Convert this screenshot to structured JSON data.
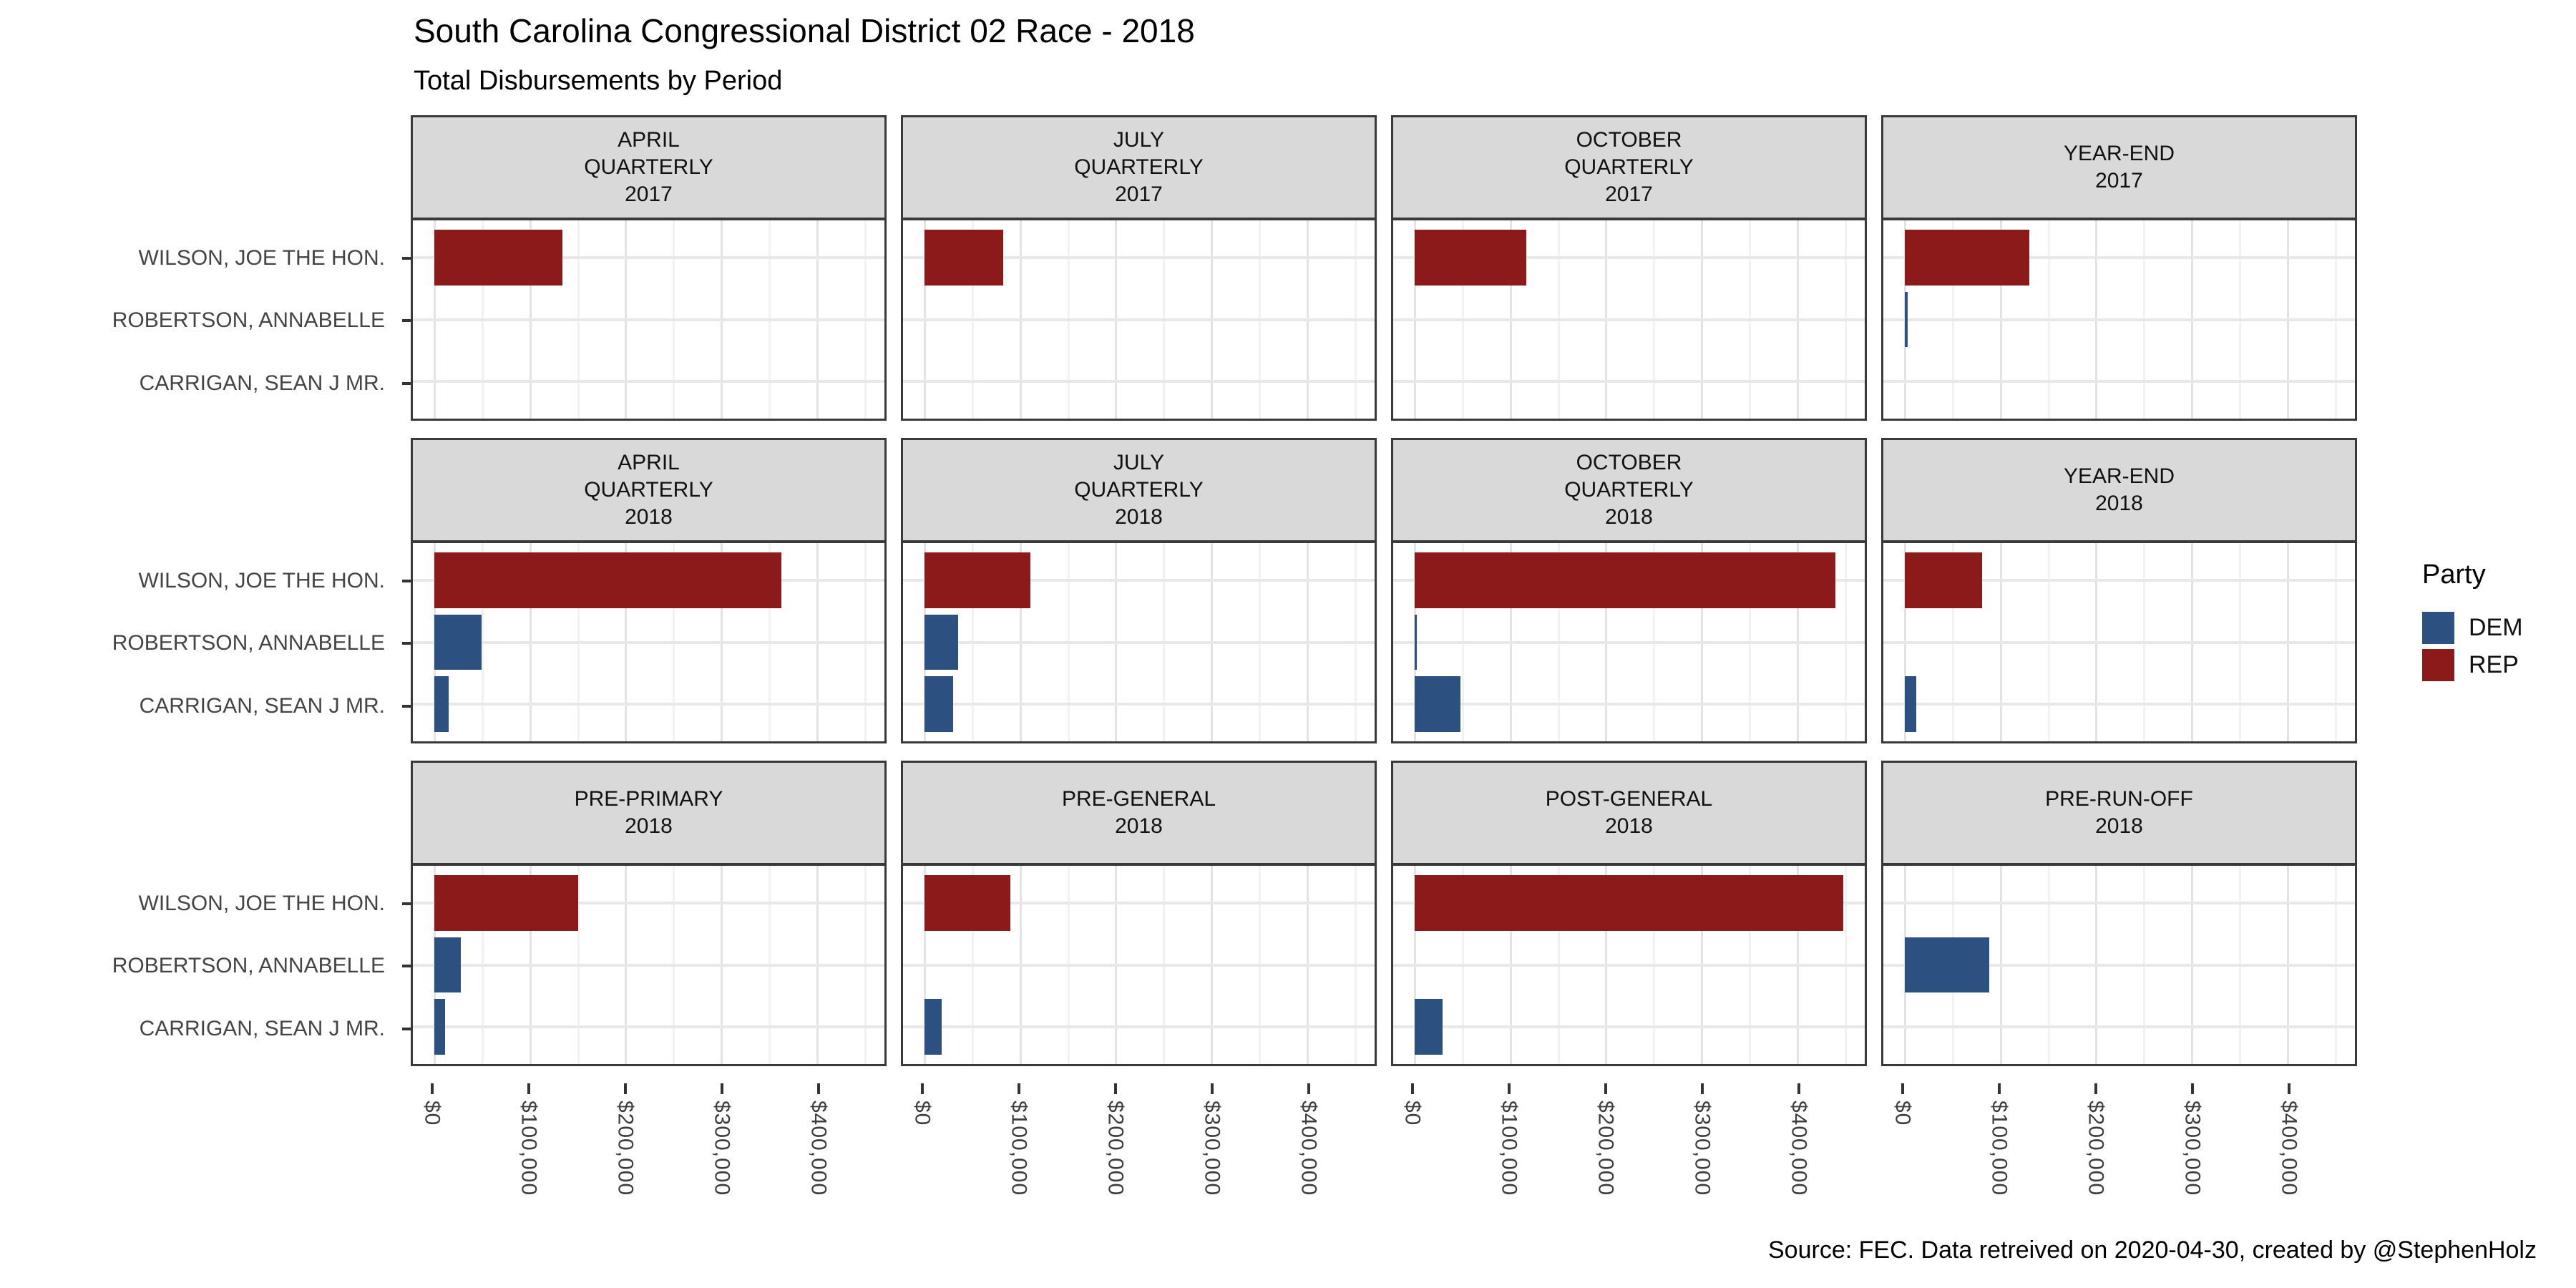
{
  "header": {
    "title": "South Carolina Congressional District 02 Race - 2018",
    "subtitle": "Total Disbursements by Period"
  },
  "caption": "Source: FEC. Data retreived on 2020-04-30, created by @StephenHolz",
  "legend": {
    "title": "Party",
    "items": [
      {
        "label": "DEM",
        "color": "#2C5080"
      },
      {
        "label": "REP",
        "color": "#8C1A1A"
      }
    ]
  },
  "colors": {
    "dem": "#2C5080",
    "rep": "#8C1A1A",
    "strip_bg": "#D9D9D9",
    "panel_border": "#3A3A3A",
    "grid_major": "#E3E3E3",
    "grid_minor": "#F2F2F2",
    "axis_text": "#444444"
  },
  "chart_data": {
    "type": "bar",
    "orientation": "horizontal",
    "title": "South Carolina Congressional District 02 Race - 2018",
    "subtitle": "Total Disbursements by Period",
    "xlabel": "",
    "ylabel": "",
    "grid": true,
    "legend_position": "right",
    "categories": [
      "WILSON, JOE THE HON.",
      "ROBERTSON, ANNABELLE",
      "CARRIGAN, SEAN J MR."
    ],
    "category_parties": [
      "REP",
      "DEM",
      "DEM"
    ],
    "x_axis": {
      "tick_labels": [
        "$0",
        "$100,000",
        "$200,000",
        "$300,000",
        "$400,000"
      ],
      "tick_values": [
        0,
        100000,
        200000,
        300000,
        400000
      ],
      "minor_tick_values": [
        50000,
        150000,
        250000,
        350000,
        450000
      ],
      "xlim": [
        -22400,
        470400
      ]
    },
    "facet_layout": {
      "rows": 3,
      "cols": 4
    },
    "facets": [
      {
        "label_lines": [
          "APRIL",
          "QUARTERLY",
          "2017"
        ],
        "values": [
          134000,
          0,
          0
        ]
      },
      {
        "label_lines": [
          "JULY",
          "QUARTERLY",
          "2017"
        ],
        "values": [
          82000,
          0,
          0
        ]
      },
      {
        "label_lines": [
          "OCTOBER",
          "QUARTERLY",
          "2017"
        ],
        "values": [
          117000,
          0,
          0
        ]
      },
      {
        "label_lines": [
          "YEAR-END",
          "2017"
        ],
        "values": [
          130000,
          3000,
          0
        ]
      },
      {
        "label_lines": [
          "APRIL",
          "QUARTERLY",
          "2018"
        ],
        "values": [
          363000,
          49000,
          15000
        ]
      },
      {
        "label_lines": [
          "JULY",
          "QUARTERLY",
          "2018"
        ],
        "values": [
          111000,
          35000,
          30000
        ]
      },
      {
        "label_lines": [
          "OCTOBER",
          "QUARTERLY",
          "2018"
        ],
        "values": [
          440000,
          2000,
          48000
        ]
      },
      {
        "label_lines": [
          "YEAR-END",
          "2018"
        ],
        "values": [
          81000,
          0,
          12000
        ]
      },
      {
        "label_lines": [
          "PRE-PRIMARY",
          "2018"
        ],
        "values": [
          150000,
          28000,
          11000
        ]
      },
      {
        "label_lines": [
          "PRE-GENERAL",
          "2018"
        ],
        "values": [
          90000,
          0,
          18000
        ]
      },
      {
        "label_lines": [
          "POST-GENERAL",
          "2018"
        ],
        "values": [
          448000,
          0,
          29000
        ]
      },
      {
        "label_lines": [
          "PRE-RUN-OFF",
          "2018"
        ],
        "values": [
          0,
          88000,
          0
        ]
      }
    ]
  }
}
